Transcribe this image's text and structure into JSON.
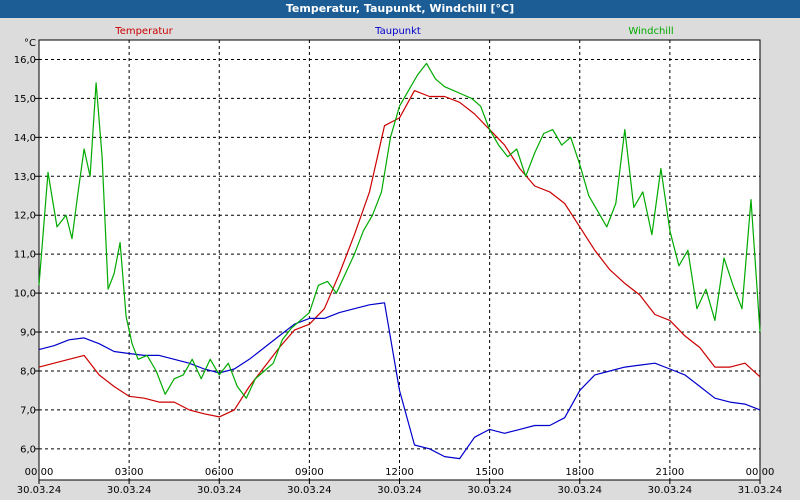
{
  "window": {
    "title": "Temperatur, Taupunkt, Windchill [°C]"
  },
  "chart_data": {
    "type": "line",
    "title": "Temperatur, Taupunkt, Windchill [°C]",
    "ylabel": "°C",
    "ylim": [
      5.2,
      16.5
    ],
    "y_ticks": [
      6.0,
      7.0,
      8.0,
      9.0,
      10.0,
      11.0,
      12.0,
      13.0,
      14.0,
      15.0,
      16.0
    ],
    "y_tick_labels": [
      "6,0",
      "7,0",
      "8,0",
      "9,0",
      "10,0",
      "11,0",
      "12,0",
      "13,0",
      "14,0",
      "15,0",
      "16,0"
    ],
    "xlim": [
      0,
      24
    ],
    "x_ticks": [
      0,
      3,
      6,
      9,
      12,
      15,
      18,
      21,
      24
    ],
    "x_tick_time_labels": [
      "00:00",
      "03:00",
      "06:00",
      "09:00",
      "12:00",
      "15:00",
      "18:00",
      "21:00",
      "00:00"
    ],
    "x_tick_date_labels": [
      "30.03.24",
      "30.03.24",
      "30.03.24",
      "30.03.24",
      "30.03.24",
      "30.03.24",
      "30.03.24",
      "30.03.24",
      "31.03.24"
    ],
    "grid": true,
    "legend_position": "top",
    "series": [
      {
        "name": "Temperatur",
        "color": "#cc0000",
        "x": [
          0,
          0.5,
          1.0,
          1.5,
          2.0,
          2.5,
          3.0,
          3.5,
          4.0,
          4.5,
          5.0,
          5.5,
          6.0,
          6.5,
          7.0,
          7.5,
          8.0,
          8.5,
          9.0,
          9.5,
          10.0,
          10.5,
          11.0,
          11.5,
          12.0,
          12.5,
          13.0,
          13.5,
          14.0,
          14.5,
          15.0,
          15.5,
          16.0,
          16.5,
          17.0,
          17.5,
          18.0,
          18.5,
          19.0,
          19.5,
          20.0,
          20.5,
          21.0,
          21.5,
          22.0,
          22.5,
          23.0,
          23.5,
          24.0
        ],
        "values": [
          8.1,
          8.2,
          8.3,
          8.4,
          7.9,
          7.6,
          7.35,
          7.3,
          7.2,
          7.2,
          7.0,
          6.9,
          6.82,
          7.0,
          7.6,
          8.1,
          8.6,
          9.05,
          9.2,
          9.6,
          10.5,
          11.5,
          12.6,
          14.3,
          14.5,
          15.2,
          15.05,
          15.05,
          14.9,
          14.6,
          14.2,
          13.8,
          13.2,
          12.75,
          12.6,
          12.3,
          11.7,
          11.1,
          10.6,
          10.25,
          9.95,
          9.45,
          9.3,
          8.9,
          8.6,
          8.1,
          8.1,
          8.2,
          7.85
        ]
      },
      {
        "name": "Taupunkt",
        "color": "#0000cc",
        "x": [
          0,
          0.5,
          1.0,
          1.5,
          2.0,
          2.5,
          3.0,
          3.5,
          4.0,
          4.5,
          5.0,
          5.5,
          6.0,
          6.5,
          7.0,
          7.5,
          8.0,
          8.5,
          9.0,
          9.5,
          10.0,
          10.5,
          11.0,
          11.5,
          12.0,
          12.5,
          13.0,
          13.5,
          14.0,
          14.5,
          15.0,
          15.5,
          16.0,
          16.5,
          17.0,
          17.5,
          18.0,
          18.5,
          19.0,
          19.5,
          20.0,
          20.5,
          21.0,
          21.5,
          22.0,
          22.5,
          23.0,
          23.5,
          24.0
        ],
        "values": [
          8.55,
          8.65,
          8.8,
          8.85,
          8.7,
          8.5,
          8.45,
          8.4,
          8.4,
          8.3,
          8.2,
          8.05,
          7.95,
          8.05,
          8.3,
          8.6,
          8.9,
          9.2,
          9.35,
          9.35,
          9.5,
          9.6,
          9.7,
          9.75,
          7.5,
          6.1,
          6.0,
          5.8,
          5.75,
          6.3,
          6.5,
          6.4,
          6.5,
          6.6,
          6.6,
          6.8,
          7.5,
          7.9,
          8.0,
          8.1,
          8.15,
          8.2,
          8.05,
          7.9,
          7.6,
          7.3,
          7.2,
          7.15,
          7.0
        ]
      },
      {
        "name": "Windchill",
        "color": "#00aa00",
        "x": [
          0,
          0.3,
          0.6,
          0.9,
          1.1,
          1.3,
          1.5,
          1.7,
          1.9,
          2.1,
          2.3,
          2.5,
          2.7,
          2.9,
          3.1,
          3.3,
          3.6,
          3.9,
          4.2,
          4.5,
          4.8,
          5.1,
          5.4,
          5.7,
          6.0,
          6.3,
          6.6,
          6.9,
          7.2,
          7.5,
          7.8,
          8.1,
          8.4,
          8.7,
          9.0,
          9.3,
          9.6,
          9.9,
          10.2,
          10.5,
          10.8,
          11.1,
          11.4,
          11.7,
          12.0,
          12.3,
          12.6,
          12.9,
          13.2,
          13.5,
          13.8,
          14.1,
          14.4,
          14.7,
          15.0,
          15.3,
          15.6,
          15.9,
          16.2,
          16.5,
          16.8,
          17.1,
          17.4,
          17.7,
          18.0,
          18.3,
          18.6,
          18.9,
          19.2,
          19.5,
          19.8,
          20.1,
          20.4,
          20.7,
          21.0,
          21.3,
          21.6,
          21.9,
          22.2,
          22.5,
          22.8,
          23.1,
          23.4,
          23.7,
          24.0
        ],
        "values": [
          10.2,
          13.1,
          11.7,
          12.0,
          11.4,
          12.6,
          13.7,
          13.0,
          15.4,
          13.5,
          10.1,
          10.5,
          11.3,
          9.4,
          8.7,
          8.3,
          8.4,
          8.0,
          7.4,
          7.8,
          7.9,
          8.3,
          7.8,
          8.3,
          7.9,
          8.2,
          7.6,
          7.3,
          7.8,
          8.0,
          8.2,
          8.8,
          9.1,
          9.3,
          9.5,
          10.2,
          10.3,
          10.0,
          10.5,
          11.0,
          11.6,
          12.0,
          12.6,
          14.0,
          14.8,
          15.2,
          15.6,
          15.9,
          15.5,
          15.3,
          15.2,
          15.1,
          15.0,
          14.8,
          14.2,
          13.8,
          13.5,
          13.7,
          13.0,
          13.6,
          14.1,
          14.2,
          13.8,
          14.0,
          13.3,
          12.5,
          12.1,
          11.7,
          12.3,
          14.2,
          12.2,
          12.6,
          11.5,
          13.2,
          11.6,
          10.7,
          11.1,
          9.6,
          10.1,
          9.3,
          10.9,
          10.2,
          9.6,
          12.4,
          9.0
        ]
      }
    ]
  }
}
